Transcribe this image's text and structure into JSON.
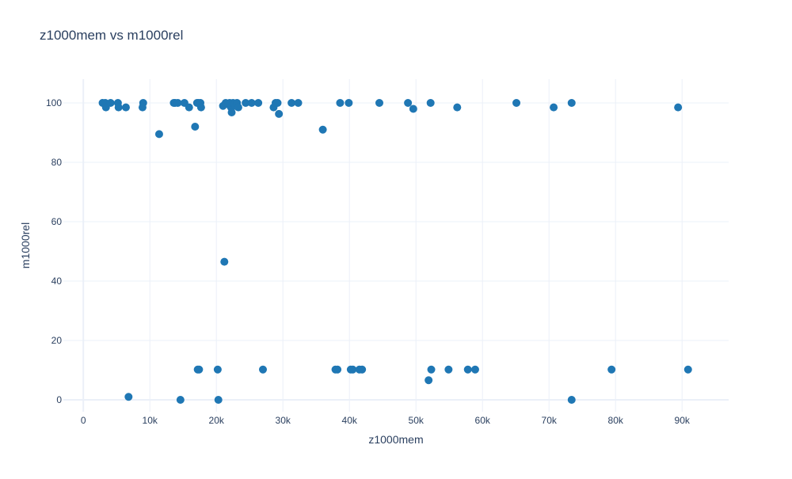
{
  "chart_data": {
    "type": "scatter",
    "title": "z1000mem vs m1000rel",
    "xlabel": "z1000mem",
    "ylabel": "m1000rel",
    "xlim": [
      -3000,
      97000
    ],
    "ylim": [
      -4,
      108
    ],
    "x_ticks": [
      0,
      10000,
      20000,
      30000,
      40000,
      50000,
      60000,
      70000,
      80000,
      90000
    ],
    "x_tick_labels": [
      "0",
      "10k",
      "20k",
      "30k",
      "40k",
      "50k",
      "60k",
      "70k",
      "80k",
      "90k"
    ],
    "y_ticks": [
      0,
      20,
      40,
      60,
      80,
      100
    ],
    "y_tick_labels": [
      "0",
      "20",
      "40",
      "60",
      "80",
      "100"
    ],
    "grid": true,
    "marker_color": "#1f77b4",
    "grid_color": "#ebf0f8",
    "text_color": "#2a3f5f",
    "series": [
      {
        "points": [
          [
            2900,
            100
          ],
          [
            3300,
            100
          ],
          [
            3400,
            98.5
          ],
          [
            4100,
            100
          ],
          [
            5200,
            100
          ],
          [
            5300,
            98.5
          ],
          [
            6400,
            98.5
          ],
          [
            6800,
            1
          ],
          [
            9000,
            100
          ],
          [
            8900,
            98.5
          ],
          [
            11400,
            89.5
          ],
          [
            13600,
            100
          ],
          [
            13800,
            100
          ],
          [
            14200,
            100
          ],
          [
            14600,
            0
          ],
          [
            15200,
            100
          ],
          [
            15900,
            98.5
          ],
          [
            16800,
            92
          ],
          [
            17100,
            100
          ],
          [
            17300,
            100
          ],
          [
            17400,
            10.2
          ],
          [
            17200,
            10.2
          ],
          [
            17600,
            100
          ],
          [
            17700,
            98.5
          ],
          [
            20200,
            10.2
          ],
          [
            20300,
            0
          ],
          [
            21000,
            99
          ],
          [
            21200,
            46.5
          ],
          [
            21400,
            100
          ],
          [
            21800,
            99.5
          ],
          [
            22000,
            100
          ],
          [
            22200,
            98.5
          ],
          [
            22300,
            96.8
          ],
          [
            22500,
            100
          ],
          [
            22700,
            99.5
          ],
          [
            22900,
            99
          ],
          [
            23100,
            100
          ],
          [
            23300,
            98.5
          ],
          [
            24400,
            100
          ],
          [
            25300,
            100
          ],
          [
            26300,
            100
          ],
          [
            27000,
            10.2
          ],
          [
            28600,
            98.5
          ],
          [
            28900,
            100
          ],
          [
            29200,
            100
          ],
          [
            29400,
            96.3
          ],
          [
            31300,
            100
          ],
          [
            32300,
            100
          ],
          [
            36000,
            91
          ],
          [
            37900,
            10.2
          ],
          [
            38200,
            10.2
          ],
          [
            38600,
            100
          ],
          [
            39900,
            100
          ],
          [
            40200,
            10.2
          ],
          [
            40500,
            10.2
          ],
          [
            41500,
            10.2
          ],
          [
            41900,
            10.2
          ],
          [
            44500,
            100
          ],
          [
            48800,
            100
          ],
          [
            49600,
            98
          ],
          [
            51900,
            6.6
          ],
          [
            52200,
            100
          ],
          [
            52300,
            10.2
          ],
          [
            54900,
            10.2
          ],
          [
            56200,
            98.5
          ],
          [
            57800,
            10.2
          ],
          [
            58900,
            10.2
          ],
          [
            65100,
            100
          ],
          [
            70700,
            98.5
          ],
          [
            73400,
            100
          ],
          [
            73400,
            0
          ],
          [
            79400,
            10.2
          ],
          [
            89400,
            98.5
          ],
          [
            90900,
            10.2
          ]
        ]
      }
    ]
  }
}
